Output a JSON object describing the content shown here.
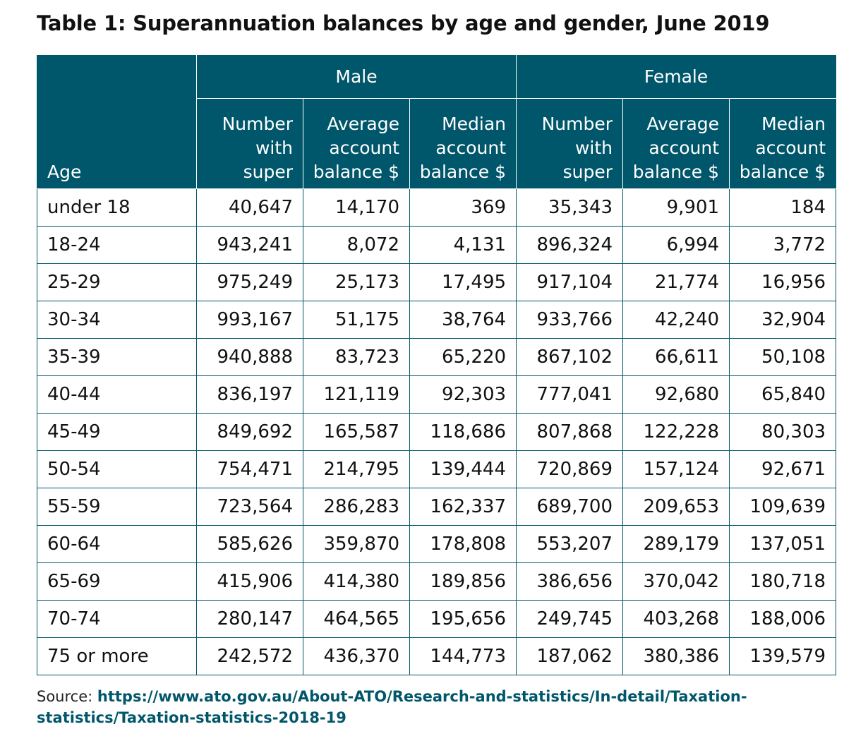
{
  "title": "Table 1: Superannuation balances by age and gender, June 2019",
  "colors": {
    "header_bg": "#00566a",
    "border": "#00566a",
    "link": "#00566a"
  },
  "table": {
    "age_header": "Age",
    "groups": [
      "Male",
      "Female"
    ],
    "subheaders": [
      [
        "Number",
        "with",
        "super"
      ],
      [
        "Average",
        "account",
        "balance $"
      ],
      [
        "Median",
        "account",
        "balance $"
      ],
      [
        "Number",
        "with",
        "super"
      ],
      [
        "Average",
        "account",
        "balance $"
      ],
      [
        "Median",
        "account",
        "balance $"
      ]
    ],
    "rows": [
      {
        "age": "under 18",
        "values": [
          "40,647",
          "14,170",
          "369",
          "35,343",
          "9,901",
          "184"
        ]
      },
      {
        "age": "18-24",
        "values": [
          "943,241",
          "8,072",
          "4,131",
          "896,324",
          "6,994",
          "3,772"
        ]
      },
      {
        "age": "25-29",
        "values": [
          "975,249",
          "25,173",
          "17,495",
          "917,104",
          "21,774",
          "16,956"
        ]
      },
      {
        "age": "30-34",
        "values": [
          "993,167",
          "51,175",
          "38,764",
          "933,766",
          "42,240",
          "32,904"
        ]
      },
      {
        "age": "35-39",
        "values": [
          "940,888",
          "83,723",
          "65,220",
          "867,102",
          "66,611",
          "50,108"
        ]
      },
      {
        "age": "40-44",
        "values": [
          "836,197",
          "121,119",
          "92,303",
          "777,041",
          "92,680",
          "65,840"
        ]
      },
      {
        "age": "45-49",
        "values": [
          "849,692",
          "165,587",
          "118,686",
          "807,868",
          "122,228",
          "80,303"
        ]
      },
      {
        "age": "50-54",
        "values": [
          "754,471",
          "214,795",
          "139,444",
          "720,869",
          "157,124",
          "92,671"
        ]
      },
      {
        "age": "55-59",
        "values": [
          "723,564",
          "286,283",
          "162,337",
          "689,700",
          "209,653",
          "109,639"
        ]
      },
      {
        "age": "60-64",
        "values": [
          "585,626",
          "359,870",
          "178,808",
          "553,207",
          "289,179",
          "137,051"
        ]
      },
      {
        "age": "65-69",
        "values": [
          "415,906",
          "414,380",
          "189,856",
          "386,656",
          "370,042",
          "180,718"
        ]
      },
      {
        "age": "70-74",
        "values": [
          "280,147",
          "464,565",
          "195,656",
          "249,745",
          "403,268",
          "188,006"
        ]
      },
      {
        "age": "75 or more",
        "values": [
          "242,572",
          "436,370",
          "144,773",
          "187,062",
          "380,386",
          "139,579"
        ]
      }
    ]
  },
  "source": {
    "label": "Source:",
    "url": "https://www.ato.gov.au/About-ATO/Research-and-statistics/In-detail/Taxation-statistics/Taxation-statistics-2018-19"
  }
}
